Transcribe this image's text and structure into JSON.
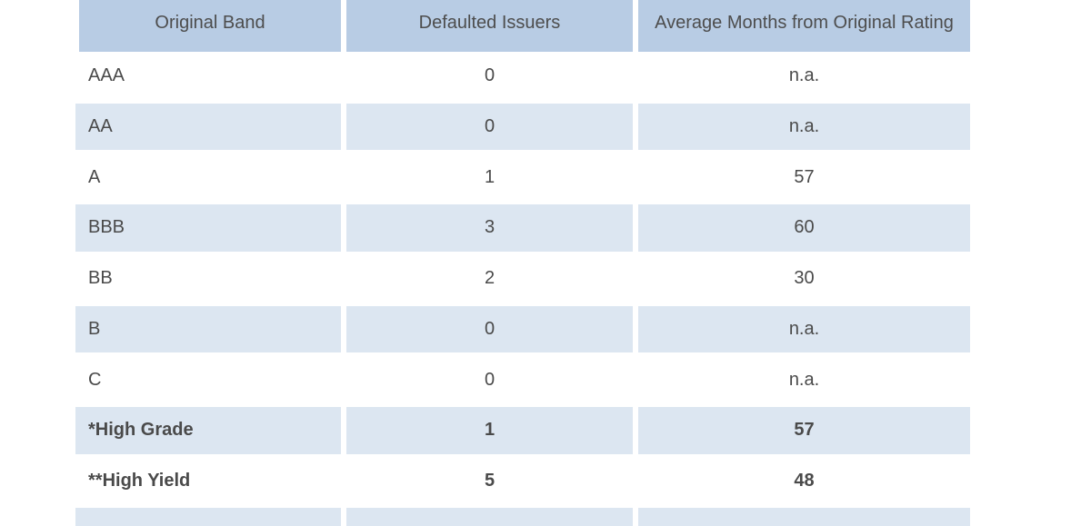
{
  "table": {
    "header": [
      "Original Band",
      "Defaulted Issuers",
      "Average Months from Original Rating"
    ],
    "rows": [
      [
        "AAA",
        0,
        "n.a."
      ],
      [
        "AA",
        0,
        "n.a."
      ],
      [
        "A",
        1,
        57
      ],
      [
        "BBB",
        3,
        60
      ],
      [
        "BB",
        2,
        30
      ],
      [
        "B",
        0,
        "n.a."
      ],
      [
        "C",
        0,
        "n.a."
      ],
      [
        "*High Grade",
        1,
        57
      ],
      [
        "**High Yield",
        5,
        48
      ]
    ]
  }
}
